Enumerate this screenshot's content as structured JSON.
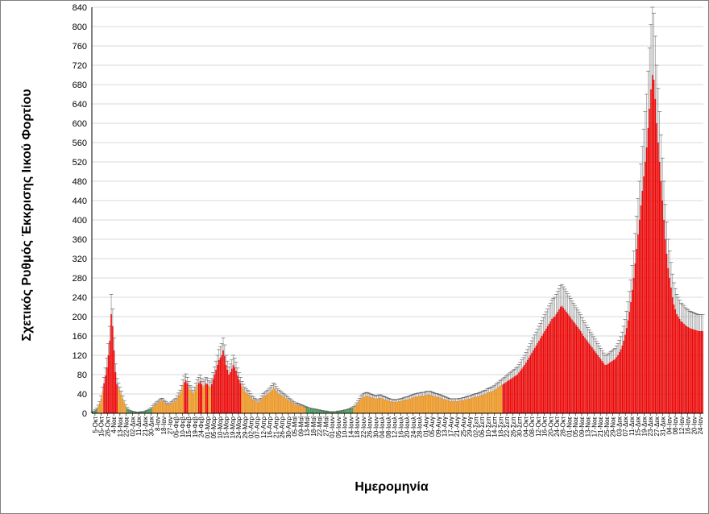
{
  "chart_data": {
    "type": "bar",
    "xlabel": "Ημερομηνία",
    "ylabel": "Σχετικός Ρυθμός Έκκρισης Ιικού Φορτίου",
    "ylim": [
      0,
      840
    ],
    "yticks": [
      0,
      40,
      80,
      120,
      160,
      200,
      240,
      280,
      320,
      360,
      400,
      440,
      480,
      520,
      560,
      600,
      640,
      680,
      720,
      760,
      800,
      840
    ],
    "grid": true,
    "error_bars": true,
    "colors": {
      "high": "#ff0000",
      "medium": "#ffb020",
      "low": "#22b35a",
      "error_bar": "#909090",
      "grid": "#d9d9d9"
    },
    "x_tick_labels": [
      "5-Οκτ",
      "15-Οκτ",
      "26-Οκτ",
      "4-Νοε",
      "13-Νοε",
      "22-Νοε",
      "02-Δεκ",
      "11-Δεκ",
      "21-Δεκ",
      "30-Δεκ",
      "8-Ιαν",
      "18-Ιαν",
      "27-Ιαν",
      "05-Φεβ",
      "10-Φεβ",
      "15-Φεβ",
      "19-Φεβ",
      "24-Φεβ",
      "01-Μαρ",
      "05-Μαρ",
      "10-Μαρ",
      "15-Μαρ",
      "19-Μαρ",
      "24-Μαρ",
      "29-Μαρ",
      "02-Απρ",
      "07-Απρ",
      "12-Απρ",
      "16-Απρ",
      "21-Απρ",
      "26-Απρ",
      "30-Απρ",
      "05-Μαϊ",
      "09-Μαϊ",
      "13-Μαϊ",
      "18-Μαϊ",
      "22-Μαϊ",
      "27-Μαϊ",
      "01-Ιουν",
      "05-Ιουν",
      "10-Ιουν",
      "14-Ιουν",
      "18-Ιουν",
      "22-Ιουν",
      "26-Ιουν",
      "30-Ιουν",
      "04-Ιουλ",
      "08-Ιουλ",
      "12-Ιουλ",
      "16-Ιουλ",
      "20-Ιουλ",
      "24-Ιουλ",
      "28-Ιουλ",
      "01-Αυγ",
      "05-Αυγ",
      "09-Αυγ",
      "13-Αυγ",
      "17-Αυγ",
      "21-Αυγ",
      "25-Αυγ",
      "29-Αυγ",
      "02-Σεπ",
      "06-Σεπ",
      "10-Σεπ",
      "14-Σεπ",
      "18-Σεπ",
      "22-Σεπ",
      "26-Σεπ",
      "30-Σεπ",
      "04-Οκτ",
      "08-Οκτ",
      "12-Οκτ",
      "16-Οκτ",
      "20-Οκτ",
      "24-Οκτ",
      "28-Οκτ",
      "01-Νοε",
      "05-Νοε",
      "09-Νοε",
      "13-Νοε",
      "17-Νοε",
      "21-Νοε",
      "25-Νοε",
      "29-Νοε",
      "03-Δεκ",
      "07-Δεκ",
      "11-Δεκ",
      "15-Δεκ",
      "19-Δεκ",
      "23-Δεκ",
      "27-Δεκ",
      "31-Δεκ",
      "04-Ιαν",
      "08-Ιαν",
      "12-Ιαν",
      "16-Ιαν",
      "20-Ιαν",
      "24-Ιαν"
    ],
    "values": [
      2,
      4,
      6,
      9,
      14,
      20,
      30,
      45,
      62,
      78,
      95,
      120,
      150,
      205,
      180,
      130,
      85,
      60,
      52,
      45,
      38,
      30,
      22,
      15,
      10,
      7,
      5,
      4,
      3,
      3,
      2,
      2,
      2,
      2,
      3,
      3,
      3,
      4,
      5,
      6,
      8,
      10,
      13,
      16,
      18,
      20,
      22,
      24,
      26,
      25,
      22,
      20,
      18,
      16,
      18,
      20,
      22,
      24,
      26,
      30,
      35,
      40,
      48,
      58,
      64,
      68,
      62,
      55,
      48,
      45,
      40,
      45,
      52,
      58,
      62,
      66,
      60,
      55,
      58,
      62,
      60,
      56,
      54,
      60,
      70,
      80,
      90,
      100,
      110,
      115,
      120,
      130,
      118,
      100,
      90,
      80,
      85,
      92,
      100,
      95,
      88,
      78,
      70,
      62,
      55,
      50,
      45,
      42,
      40,
      38,
      34,
      30,
      28,
      26,
      24,
      22,
      24,
      26,
      30,
      34,
      36,
      38,
      40,
      42,
      45,
      48,
      52,
      50,
      46,
      42,
      40,
      38,
      36,
      34,
      32,
      30,
      28,
      26,
      24,
      22,
      20,
      18,
      18,
      17,
      16,
      15,
      14,
      13,
      12,
      11,
      10,
      9,
      9,
      8,
      8,
      7,
      7,
      6,
      6,
      5,
      5,
      4,
      4,
      4,
      3,
      3,
      3,
      3,
      3,
      3,
      3,
      4,
      4,
      4,
      5,
      5,
      6,
      6,
      7,
      8,
      9,
      10,
      12,
      14,
      18,
      22,
      26,
      30,
      32,
      34,
      35,
      36,
      35,
      34,
      33,
      32,
      31,
      30,
      30,
      31,
      32,
      31,
      30,
      29,
      28,
      27,
      26,
      25,
      24,
      24,
      23,
      23,
      24,
      24,
      25,
      25,
      26,
      27,
      28,
      28,
      29,
      30,
      31,
      32,
      33,
      34,
      34,
      35,
      35,
      36,
      36,
      36,
      37,
      38,
      38,
      38,
      37,
      36,
      35,
      34,
      34,
      33,
      32,
      31,
      30,
      29,
      28,
      27,
      26,
      25,
      25,
      25,
      25,
      25,
      25,
      25,
      26,
      26,
      27,
      27,
      28,
      29,
      30,
      30,
      31,
      32,
      33,
      34,
      34,
      35,
      36,
      37,
      38,
      39,
      40,
      42,
      43,
      44,
      45,
      46,
      48,
      50,
      52,
      54,
      56,
      58,
      60,
      62,
      64,
      66,
      68,
      70,
      72,
      74,
      76,
      78,
      80,
      84,
      88,
      92,
      96,
      100,
      105,
      110,
      115,
      120,
      125,
      130,
      135,
      140,
      145,
      150,
      155,
      160,
      165,
      170,
      175,
      180,
      185,
      190,
      195,
      198,
      200,
      205,
      210,
      215,
      220,
      222,
      218,
      214,
      210,
      206,
      202,
      198,
      194,
      190,
      186,
      182,
      178,
      174,
      170,
      165,
      160,
      156,
      152,
      148,
      144,
      140,
      136,
      132,
      128,
      124,
      120,
      116,
      112,
      108,
      104,
      100,
      100,
      102,
      104,
      106,
      108,
      110,
      112,
      116,
      120,
      126,
      132,
      140,
      150,
      162,
      176,
      192,
      210,
      230,
      255,
      280,
      310,
      340,
      370,
      400,
      430,
      460,
      490,
      520,
      550,
      590,
      630,
      670,
      700,
      690,
      650,
      600,
      560,
      520,
      480,
      440,
      400,
      360,
      330,
      300,
      280,
      260,
      240,
      225,
      215,
      205,
      200,
      195,
      190,
      188,
      185,
      182,
      180,
      178,
      176,
      175,
      174,
      173,
      172,
      171,
      170,
      170,
      170,
      170
    ]
  }
}
